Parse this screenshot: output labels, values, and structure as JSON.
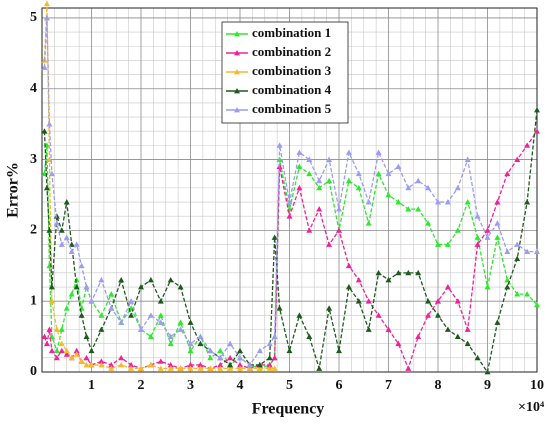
{
  "chart_data": {
    "type": "line",
    "x_label": "Frequency",
    "y_label": "Error%",
    "x_multiplier": "×10⁴",
    "x": [
      0.05,
      0.1,
      0.15,
      0.2,
      0.3,
      0.4,
      0.5,
      0.6,
      0.7,
      0.8,
      0.9,
      1.0,
      1.2,
      1.4,
      1.6,
      1.8,
      2.0,
      2.2,
      2.4,
      2.6,
      2.8,
      3.0,
      3.2,
      3.4,
      3.6,
      3.8,
      4.0,
      4.2,
      4.4,
      4.6,
      4.7,
      4.8,
      5.0,
      5.2,
      5.4,
      5.6,
      5.8,
      6.0,
      6.2,
      6.4,
      6.6,
      6.8,
      7.0,
      7.2,
      7.4,
      7.6,
      7.8,
      8.0,
      8.2,
      8.4,
      8.6,
      8.8,
      9.0,
      9.2,
      9.4,
      9.6,
      9.8,
      10.0
    ],
    "series": [
      {
        "name": "combination 1",
        "color": "#2ee82e",
        "values": [
          2.8,
          3.2,
          1.5,
          0.5,
          0.3,
          0.6,
          0.9,
          1.1,
          1.3,
          0.9,
          1.2,
          1.0,
          0.8,
          1.1,
          0.7,
          0.9,
          0.6,
          0.5,
          0.8,
          0.4,
          0.7,
          0.3,
          0.5,
          0.2,
          0.3,
          0.1,
          0.2,
          0.1,
          0.05,
          0.1,
          0.2,
          3.0,
          2.3,
          2.9,
          2.8,
          2.6,
          2.7,
          2.0,
          2.7,
          2.6,
          2.1,
          2.8,
          2.5,
          2.4,
          2.3,
          2.3,
          2.1,
          1.8,
          1.8,
          2.0,
          2.4,
          1.9,
          1.2,
          1.9,
          1.3,
          1.1,
          1.1,
          0.95
        ]
      },
      {
        "name": "combination 2",
        "color": "#f0229a",
        "values": [
          0.5,
          0.4,
          0.6,
          0.3,
          0.2,
          0.3,
          0.25,
          0.2,
          0.3,
          0.15,
          0.2,
          0.1,
          0.15,
          0.1,
          0.2,
          0.1,
          0.05,
          0.1,
          0.15,
          0.1,
          0.05,
          0.1,
          0.1,
          0.05,
          0.1,
          0.2,
          0.1,
          0.05,
          0.1,
          0.1,
          0.2,
          2.9,
          2.2,
          2.6,
          2.0,
          2.3,
          1.8,
          2.0,
          1.5,
          1.3,
          1.0,
          0.8,
          0.6,
          0.4,
          0.05,
          0.5,
          0.8,
          1.0,
          1.2,
          1.0,
          0.6,
          1.8,
          2.0,
          2.4,
          2.8,
          3.0,
          3.2,
          3.4
        ]
      },
      {
        "name": "combination 3",
        "color": "#f5b92e",
        "values": [
          4.4,
          5.2,
          3.0,
          1.0,
          0.6,
          0.4,
          0.3,
          0.2,
          0.25,
          0.15,
          0.1,
          0.1,
          0.1,
          0.05,
          0.1,
          0.05,
          0.05,
          0.1,
          0.05,
          0.05,
          0.05,
          0.05,
          0.05,
          0.05,
          0.05,
          0.05,
          0.05,
          0.05,
          0.05,
          0.05,
          0.05,
          null,
          null,
          null,
          null,
          null,
          null,
          null,
          null,
          null,
          null,
          null,
          null,
          null,
          null,
          null,
          null,
          null,
          null,
          null,
          null,
          null,
          null,
          null,
          null,
          null,
          null,
          null
        ]
      },
      {
        "name": "combination 4",
        "color": "#1e5a1e",
        "values": [
          3.4,
          2.6,
          2.0,
          1.2,
          2.2,
          2.0,
          2.4,
          1.8,
          1.2,
          0.8,
          0.5,
          0.3,
          0.6,
          0.9,
          1.3,
          0.8,
          1.2,
          1.3,
          1.0,
          1.3,
          1.2,
          0.7,
          0.4,
          0.3,
          0.2,
          0.1,
          0.3,
          0.1,
          0.1,
          0.2,
          1.9,
          0.9,
          0.3,
          0.8,
          0.5,
          0.05,
          0.9,
          0.3,
          1.2,
          1.0,
          0.6,
          1.4,
          1.3,
          1.4,
          1.4,
          1.4,
          1.0,
          0.8,
          0.6,
          0.5,
          0.4,
          0.2,
          0.0,
          0.7,
          1.2,
          1.6,
          2.4,
          3.7
        ]
      },
      {
        "name": "combination 5",
        "color": "#9c9cf0",
        "values": [
          4.3,
          5.0,
          3.5,
          2.8,
          2.1,
          1.8,
          1.9,
          1.7,
          1.8,
          1.5,
          1.2,
          1.0,
          1.3,
          0.9,
          0.7,
          1.0,
          0.6,
          0.8,
          0.7,
          0.5,
          0.6,
          0.4,
          0.5,
          0.3,
          0.2,
          0.4,
          0.2,
          0.1,
          0.3,
          0.4,
          0.5,
          3.2,
          2.4,
          3.1,
          3.0,
          2.7,
          3.0,
          2.3,
          3.1,
          2.8,
          2.4,
          3.1,
          2.8,
          2.9,
          2.6,
          2.7,
          2.6,
          2.4,
          2.4,
          2.6,
          3.0,
          2.2,
          1.9,
          2.1,
          1.7,
          1.8,
          1.7,
          1.7
        ]
      }
    ],
    "xlim": [
      0,
      10
    ],
    "xticks": [
      1,
      2,
      3,
      4,
      5,
      6,
      7,
      8,
      9,
      10
    ],
    "ylim": [
      0,
      5.14
    ],
    "yticks": [
      0,
      1,
      2,
      3,
      4,
      5
    ],
    "grid": true,
    "minor_grid": true,
    "legend": "upper center"
  }
}
